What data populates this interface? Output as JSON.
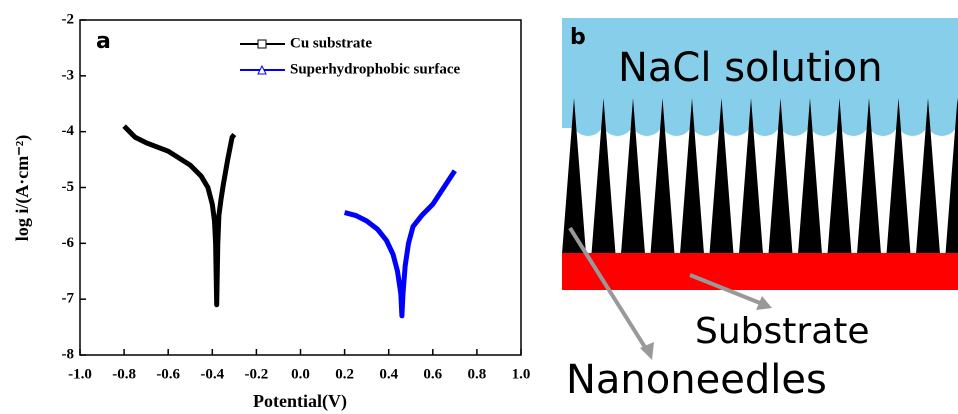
{
  "chart_data": {
    "type": "line",
    "panel_label": "a",
    "xlabel": "Potential(V)",
    "ylabel": "log i/(A·cm⁻²)",
    "xlim": [
      -1.0,
      1.0
    ],
    "xticks": [
      {
        "value": -1.0,
        "label": "-1.0"
      },
      {
        "value": -0.8,
        "label": "-0.8"
      },
      {
        "value": -0.6,
        "label": "-0.6"
      },
      {
        "value": -0.4,
        "label": "-0.4"
      },
      {
        "value": -0.2,
        "label": "-0.2"
      },
      {
        "value": 0,
        "label": "0.0"
      },
      {
        "value": 0.2,
        "label": "0.2"
      },
      {
        "value": 0.4,
        "label": "0.4"
      },
      {
        "value": 0.6,
        "label": "0.6"
      },
      {
        "value": 0.8,
        "label": "0.8"
      },
      {
        "value": 1.0,
        "label": "1.0"
      }
    ],
    "ylim": [
      -8,
      -2
    ],
    "yticks": [
      -8,
      -7,
      -6,
      -5,
      -4,
      -3,
      -2
    ],
    "series": [
      {
        "name": "Cu substrate",
        "color": "#000000",
        "x": [
          -0.8,
          -0.75,
          -0.7,
          -0.6,
          -0.5,
          -0.45,
          -0.42,
          -0.4,
          -0.39,
          -0.385,
          -0.38,
          -0.375,
          -0.37,
          -0.36,
          -0.35,
          -0.33,
          -0.31,
          -0.3
        ],
        "values": [
          -3.9,
          -4.1,
          -4.2,
          -4.35,
          -4.6,
          -4.8,
          -5.0,
          -5.3,
          -5.6,
          -6.0,
          -7.1,
          -6.0,
          -5.5,
          -5.2,
          -4.95,
          -4.5,
          -4.1,
          -4.05
        ]
      },
      {
        "name": "Superhydrophobic surface",
        "color": "#0000ff",
        "x": [
          0.2,
          0.25,
          0.3,
          0.35,
          0.39,
          0.42,
          0.44,
          0.455,
          0.46,
          0.465,
          0.475,
          0.49,
          0.51,
          0.55,
          0.6,
          0.65,
          0.7
        ],
        "values": [
          -5.45,
          -5.5,
          -5.6,
          -5.75,
          -5.95,
          -6.2,
          -6.5,
          -6.9,
          -7.3,
          -6.9,
          -6.4,
          -6.0,
          -5.7,
          -5.5,
          -5.3,
          -5.0,
          -4.7
        ]
      }
    ]
  },
  "diagram": {
    "panel_label": "b",
    "solution": "NaCl solution",
    "substrate": "Substrate",
    "needles": "Nanoneedles"
  }
}
